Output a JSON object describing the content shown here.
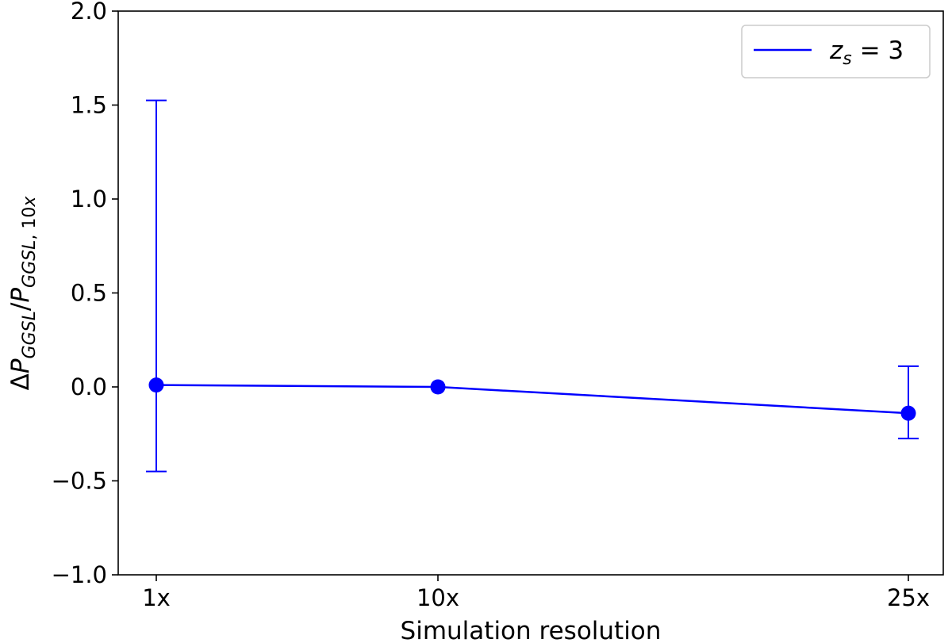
{
  "chart_data": {
    "type": "line",
    "categories": [
      "1x",
      "10x",
      "25x"
    ],
    "series": [
      {
        "legend_label": "z_s = 3",
        "color": "#0000ff",
        "values": [
          0.01,
          0.0,
          -0.14
        ],
        "error_lower": [
          -0.45,
          0.0,
          -0.275
        ],
        "error_upper": [
          1.525,
          0.0,
          0.11
        ]
      }
    ],
    "xlabel": "Simulation resolution",
    "ylabel": "ΔP_GGSL/P_GGSL,10x",
    "ylim": [
      -1.0,
      2.0
    ],
    "yticks": [
      -1.0,
      -0.5,
      0.0,
      0.5,
      1.0,
      1.5,
      2.0
    ],
    "ytick_labels": [
      "−1.0",
      "−0.5",
      "0.0",
      "0.5",
      "1.0",
      "1.5",
      "2.0"
    ],
    "grid": false,
    "legend_position": "top-right"
  }
}
